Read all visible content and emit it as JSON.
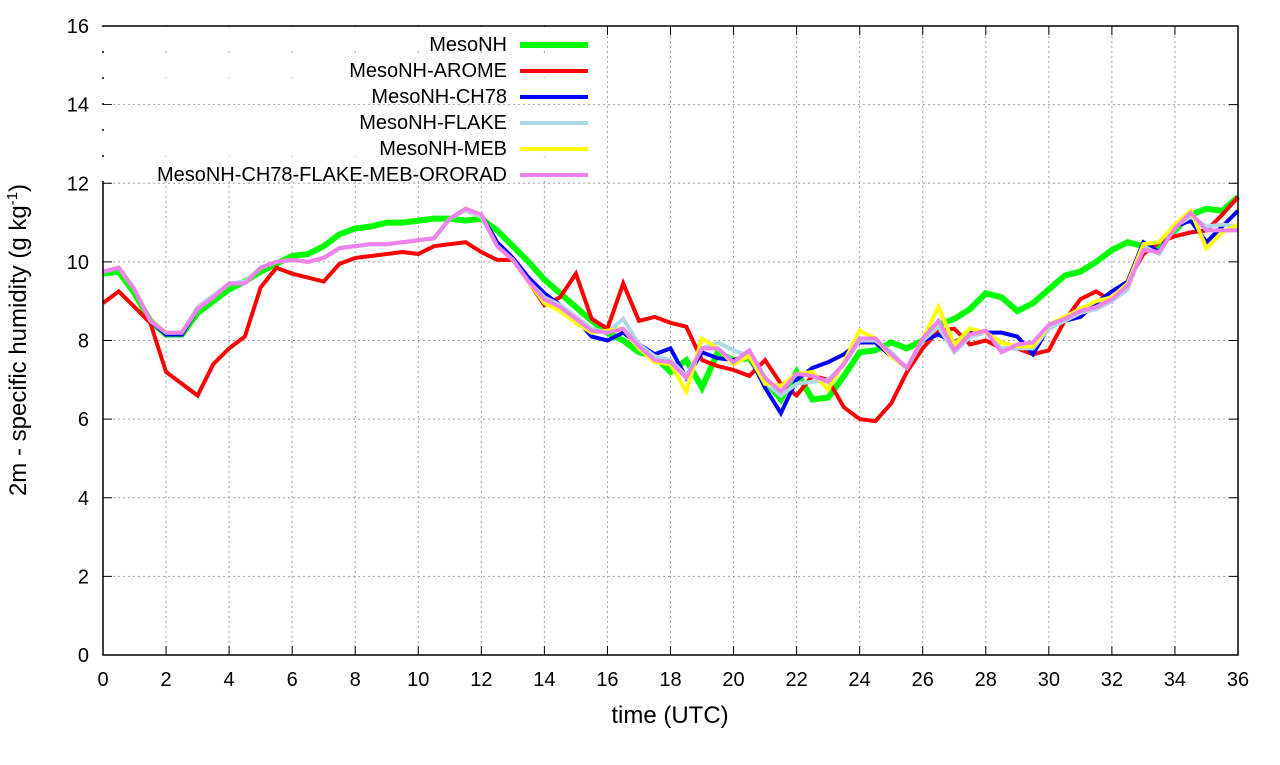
{
  "chart_data": {
    "type": "line",
    "title": "",
    "xlabel": "time (UTC)",
    "ylabel": "2m - specific humidity (g kg",
    "ylabel_sup": "-1",
    "ylabel_close": ")",
    "xlim": [
      0,
      36
    ],
    "ylim": [
      0,
      16
    ],
    "xticks": [
      0,
      2,
      4,
      6,
      8,
      10,
      12,
      14,
      16,
      18,
      20,
      22,
      24,
      26,
      28,
      30,
      32,
      34,
      36
    ],
    "yticks": [
      0,
      2,
      4,
      6,
      8,
      10,
      12,
      14,
      16
    ],
    "grid": true,
    "legend_position": "top-left",
    "x_step_hours": 0.5,
    "series": [
      {
        "name": "MesoNH",
        "color": "#00ff00",
        "values": [
          9.7,
          9.75,
          9.2,
          8.5,
          8.15,
          8.15,
          8.7,
          9.0,
          9.3,
          9.5,
          9.75,
          9.95,
          10.15,
          10.2,
          10.4,
          10.7,
          10.85,
          10.9,
          11.0,
          11.0,
          11.05,
          11.1,
          11.1,
          11.05,
          11.1,
          10.8,
          10.4,
          10.0,
          9.55,
          9.2,
          8.85,
          8.5,
          8.2,
          8.0,
          7.7,
          7.6,
          7.2,
          7.5,
          6.8,
          7.7,
          7.5,
          7.55,
          7.0,
          6.5,
          7.2,
          6.5,
          6.55,
          7.1,
          7.7,
          7.75,
          7.95,
          7.8,
          8.0,
          8.4,
          8.55,
          8.8,
          9.2,
          9.1,
          8.75,
          8.95,
          9.3,
          9.65,
          9.75,
          10.0,
          10.3,
          10.5,
          10.4,
          10.4,
          10.8,
          11.2,
          11.35,
          11.3,
          11.65
        ]
      },
      {
        "name": "MesoNH-AROME",
        "color": "#ff0000",
        "values": [
          8.95,
          9.25,
          8.85,
          8.45,
          7.2,
          6.9,
          6.6,
          7.4,
          7.8,
          8.1,
          9.35,
          9.85,
          9.7,
          9.6,
          9.5,
          9.95,
          10.1,
          10.15,
          10.2,
          10.25,
          10.2,
          10.4,
          10.45,
          10.5,
          10.25,
          10.05,
          10.05,
          9.5,
          8.9,
          9.1,
          9.7,
          8.55,
          8.3,
          9.45,
          8.5,
          8.6,
          8.45,
          8.35,
          7.5,
          7.35,
          7.25,
          7.1,
          7.5,
          6.9,
          6.6,
          7.1,
          7.0,
          6.3,
          6.0,
          5.95,
          6.4,
          7.2,
          7.8,
          8.25,
          8.3,
          7.9,
          8.0,
          7.8,
          7.8,
          7.65,
          7.75,
          8.5,
          9.05,
          9.25,
          9.0,
          9.5,
          10.2,
          10.5,
          10.65,
          10.75,
          10.8,
          11.2,
          11.65
        ]
      },
      {
        "name": "MesoNH-CH78",
        "color": "#0000ff",
        "values": [
          9.75,
          9.85,
          9.3,
          8.5,
          8.15,
          8.15,
          8.8,
          9.1,
          9.45,
          9.45,
          9.85,
          10.0,
          10.05,
          10.0,
          10.1,
          10.35,
          10.4,
          10.45,
          10.45,
          10.5,
          10.55,
          10.6,
          11.1,
          11.35,
          11.2,
          10.5,
          10.1,
          9.6,
          9.2,
          8.9,
          8.55,
          8.1,
          8.0,
          8.2,
          7.9,
          7.65,
          7.8,
          7.05,
          7.7,
          7.55,
          7.5,
          7.6,
          6.8,
          6.15,
          7.0,
          7.3,
          7.45,
          7.65,
          7.95,
          7.95,
          7.6,
          7.3,
          8.0,
          8.15,
          7.95,
          8.2,
          8.2,
          8.2,
          8.1,
          7.65,
          8.35,
          8.5,
          8.6,
          8.95,
          9.25,
          9.5,
          10.5,
          10.25,
          10.9,
          11.05,
          10.5,
          10.9,
          11.3
        ]
      },
      {
        "name": "MesoNH-FLAKE",
        "color": "#add8e6",
        "values": [
          9.75,
          9.85,
          9.3,
          8.5,
          8.2,
          8.2,
          8.85,
          9.15,
          9.45,
          9.5,
          9.85,
          10.0,
          10.05,
          10.0,
          10.1,
          10.35,
          10.4,
          10.45,
          10.45,
          10.5,
          10.55,
          10.6,
          11.1,
          11.3,
          11.15,
          10.4,
          10.05,
          9.5,
          9.1,
          8.9,
          8.6,
          8.3,
          8.2,
          8.55,
          7.9,
          7.6,
          7.5,
          7.1,
          7.8,
          7.95,
          7.75,
          7.6,
          6.95,
          6.6,
          6.9,
          6.95,
          7.0,
          7.4,
          8.0,
          8.0,
          7.7,
          7.3,
          8.0,
          8.35,
          7.7,
          8.1,
          8.2,
          7.8,
          7.8,
          7.8,
          8.3,
          8.5,
          8.7,
          8.8,
          9.0,
          9.3,
          10.4,
          10.2,
          10.9,
          11.15,
          10.9,
          10.95,
          10.9
        ]
      },
      {
        "name": "MesoNH-MEB",
        "color": "#ffff00",
        "values": [
          9.75,
          9.85,
          9.3,
          8.5,
          8.2,
          8.2,
          8.8,
          9.1,
          9.45,
          9.45,
          9.85,
          10.0,
          10.05,
          10.0,
          10.1,
          10.35,
          10.4,
          10.45,
          10.45,
          10.5,
          10.55,
          10.6,
          11.1,
          11.35,
          11.2,
          10.4,
          10.05,
          9.5,
          8.95,
          8.75,
          8.45,
          8.2,
          8.25,
          8.3,
          7.8,
          7.45,
          7.4,
          6.7,
          8.05,
          7.8,
          7.4,
          7.6,
          6.9,
          6.85,
          7.15,
          7.2,
          6.75,
          7.45,
          8.25,
          8.05,
          7.6,
          7.3,
          8.05,
          8.85,
          7.9,
          8.3,
          8.2,
          7.95,
          7.85,
          7.85,
          8.4,
          8.6,
          8.8,
          9.0,
          9.1,
          9.45,
          10.45,
          10.5,
          10.95,
          11.3,
          10.35,
          10.75,
          10.95
        ]
      },
      {
        "name": "MesoNH-CH78-FLAKE-MEB-ORORAD",
        "color": "#ee82ee",
        "values": [
          9.75,
          9.85,
          9.3,
          8.5,
          8.2,
          8.2,
          8.8,
          9.1,
          9.45,
          9.45,
          9.85,
          10.0,
          10.05,
          10.0,
          10.1,
          10.35,
          10.4,
          10.45,
          10.45,
          10.5,
          10.55,
          10.6,
          11.1,
          11.35,
          11.2,
          10.4,
          10.05,
          9.5,
          9.05,
          8.85,
          8.55,
          8.25,
          8.2,
          8.3,
          7.85,
          7.5,
          7.45,
          7.05,
          7.8,
          7.8,
          7.45,
          7.75,
          7.05,
          6.7,
          7.15,
          7.1,
          6.95,
          7.4,
          8.05,
          8.05,
          7.65,
          7.3,
          8.05,
          8.5,
          7.75,
          8.15,
          8.25,
          7.7,
          7.9,
          7.95,
          8.4,
          8.55,
          8.75,
          8.85,
          9.05,
          9.4,
          10.3,
          10.25,
          10.85,
          11.25,
          10.8,
          10.8,
          10.8
        ]
      }
    ]
  }
}
